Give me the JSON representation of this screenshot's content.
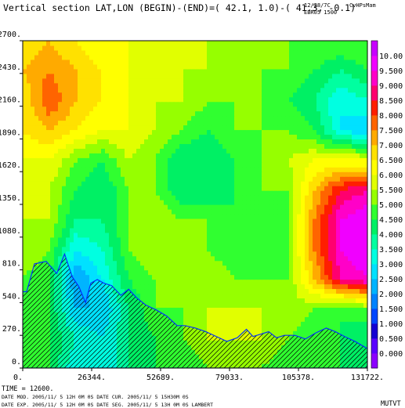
{
  "header": {
    "title": "Vertical section LAT,LON (BEGIN)-(END)=( 42.1,  1.0)-( 41.3, -0.1)",
    "date_label": "12/28/7C",
    "code_label": "EBR05 1500",
    "var_label": "CvHPsMam"
  },
  "footer": {
    "time": "TIME =    12600.",
    "line1": "DATE MOD. 2005/11/ 5  12H 0M 0S   DATE CUR. 2005/11/ 5  15H30M 0S",
    "line2": "DATE EXP.  2005/11/ 5  12H 0M 0S   DATE SEG. 2005/11/ 5  13H 0M 0S   LAMBERT",
    "corner": "MUTVT"
  },
  "chart_data": {
    "type": "heatmap",
    "title": "Vertical section LAT,LON (BEGIN)-(END)=( 42.1,  1.0)-( 41.3, -0.1)",
    "x_ticks": [
      "0.",
      "26344.",
      "52689.",
      "79033.",
      "105378.",
      "131722."
    ],
    "y_ticks": [
      "0.",
      "270.",
      "540.",
      "810.",
      "1080.",
      "1350.",
      "1620.",
      "1890.",
      "2160.",
      "2430.",
      "2700."
    ],
    "xlim": [
      0,
      131722
    ],
    "ylim": [
      0,
      2700
    ],
    "colorbar": {
      "labels": [
        "0.000",
        "0.500",
        "1.000",
        "1.500",
        "2.000",
        "2.500",
        "3.000",
        "3.500",
        "4.000",
        "4.500",
        "5.000",
        "5.500",
        "6.000",
        "6.500",
        "7.000",
        "7.500",
        "8.000",
        "8.500",
        "9.000",
        "9.500",
        "10.00"
      ],
      "range": [
        -0.5,
        10.5
      ],
      "step": 0.5,
      "colors": [
        "#8c00ff",
        "#5a00ff",
        "#1400d2",
        "#0046ff",
        "#0082ff",
        "#00b4ff",
        "#00e1ff",
        "#00ffe1",
        "#00ffa0",
        "#00f064",
        "#30ff30",
        "#96ff00",
        "#e1ff00",
        "#ffff00",
        "#ffe100",
        "#ffaa00",
        "#ff6400",
        "#ff1e00",
        "#ff006e",
        "#ff00c8",
        "#f000ff",
        "#c800ff"
      ]
    },
    "terrain": {
      "x": [
        0,
        1500,
        4500,
        9000,
        13000,
        16000,
        19000,
        21500,
        24000,
        26000,
        28500,
        31000,
        34000,
        37500,
        40500,
        43500,
        47000,
        51000,
        55000,
        59000,
        62000,
        66000,
        70000,
        74000,
        78000,
        82000,
        85500,
        88000,
        91000,
        94000,
        97000,
        100000,
        104000,
        108000,
        112000,
        116000,
        119500,
        123000,
        127000,
        131722
      ],
      "y": [
        630,
        630,
        860,
        880,
        780,
        940,
        750,
        670,
        540,
        700,
        730,
        700,
        680,
        600,
        650,
        580,
        520,
        480,
        430,
        350,
        350,
        330,
        300,
        260,
        220,
        250,
        320,
        260,
        280,
        300,
        250,
        270,
        270,
        240,
        290,
        330,
        300,
        260,
        220,
        160
      ]
    },
    "field": {
      "nx": 14,
      "ny": 12,
      "x_start": 0,
      "x_step": 10132.5,
      "y_start": 0,
      "y_step": 245.45,
      "values": [
        [
          5.0,
          4.5,
          3.0,
          3.0,
          4.0,
          4.5,
          4.5,
          5.0,
          5.5,
          5.0,
          4.5,
          4.5,
          4.5,
          4.0
        ],
        [
          5.0,
          4.5,
          3.5,
          3.0,
          4.0,
          4.5,
          5.0,
          5.5,
          5.5,
          5.5,
          5.0,
          4.5,
          4.5,
          4.0
        ],
        [
          5.0,
          4.5,
          2.5,
          2.5,
          4.0,
          5.0,
          5.0,
          5.5,
          5.5,
          5.5,
          5.5,
          5.0,
          4.5,
          5.0
        ],
        [
          5.0,
          4.5,
          2.0,
          3.0,
          4.5,
          5.0,
          5.0,
          5.5,
          5.0,
          5.0,
          5.0,
          7.0,
          9.0,
          9.5
        ],
        [
          5.5,
          5.0,
          3.0,
          3.5,
          5.0,
          5.5,
          5.0,
          5.0,
          4.5,
          4.5,
          5.0,
          7.5,
          9.5,
          10.0
        ],
        [
          5.5,
          5.5,
          4.0,
          4.0,
          5.0,
          5.5,
          5.0,
          5.0,
          4.5,
          4.5,
          5.0,
          7.5,
          9.5,
          10.0
        ],
        [
          6.0,
          5.5,
          4.5,
          4.0,
          5.0,
          5.0,
          4.0,
          4.0,
          4.5,
          5.0,
          5.0,
          7.0,
          8.5,
          9.0
        ],
        [
          6.0,
          6.0,
          5.0,
          4.5,
          5.5,
          5.0,
          4.0,
          4.0,
          4.5,
          5.0,
          5.5,
          6.0,
          6.0,
          6.0
        ],
        [
          6.5,
          7.0,
          6.5,
          6.0,
          6.0,
          5.5,
          5.0,
          4.5,
          5.0,
          5.0,
          5.0,
          4.5,
          3.0,
          2.5
        ],
        [
          6.5,
          8.0,
          7.0,
          6.5,
          6.0,
          5.5,
          5.5,
          5.0,
          5.0,
          5.0,
          4.5,
          4.0,
          3.0,
          3.5
        ],
        [
          7.0,
          7.5,
          7.0,
          6.5,
          6.0,
          5.5,
          5.5,
          5.5,
          5.0,
          5.0,
          5.0,
          4.5,
          4.0,
          4.5
        ],
        [
          6.5,
          7.0,
          6.5,
          6.0,
          6.0,
          5.5,
          5.5,
          5.5,
          5.5,
          5.0,
          5.0,
          5.0,
          5.0,
          5.0
        ]
      ]
    }
  }
}
